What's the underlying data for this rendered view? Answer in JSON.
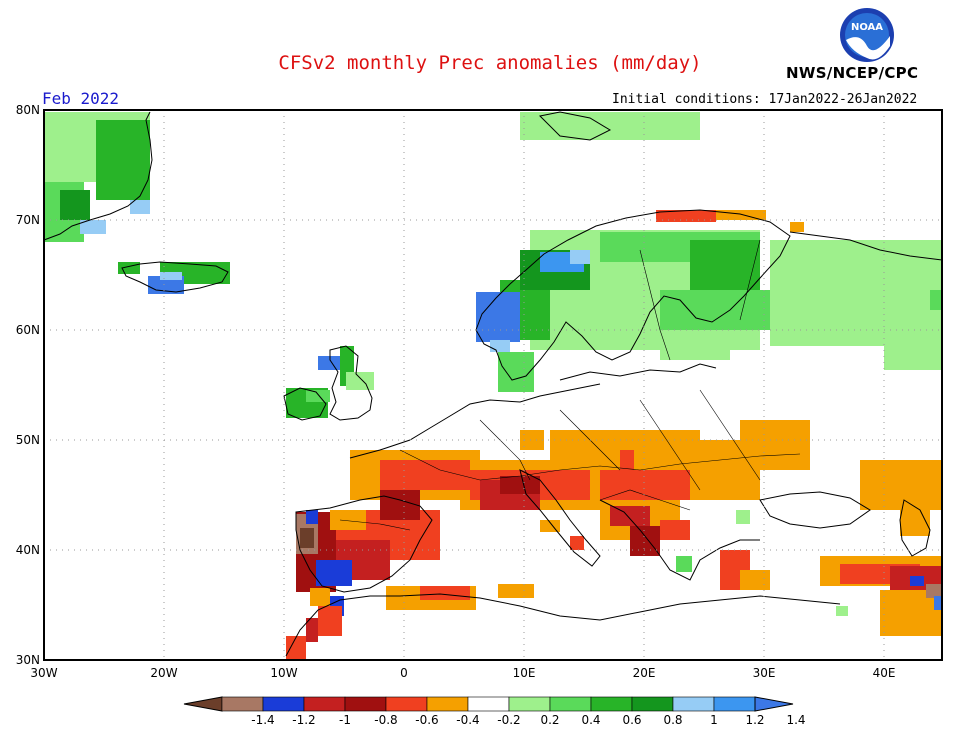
{
  "header": {
    "title": "CFSv2 monthly Prec anomalies (mm/day)",
    "org": "NWS/NCEP/CPC",
    "logo_text": "NOAA",
    "month": "Feb 2022",
    "initial_conditions": "Initial conditions: 17Jan2022-26Jan2022"
  },
  "map": {
    "lat_labels": [
      "80N",
      "70N",
      "60N",
      "50N",
      "40N",
      "30N"
    ],
    "lon_labels": [
      "30W",
      "20W",
      "10W",
      "0",
      "10E",
      "20E",
      "30E",
      "40E"
    ]
  },
  "legend": {
    "labels": [
      "-1.4",
      "-1.2",
      "-1",
      "-0.8",
      "-0.6",
      "-0.4",
      "-0.2",
      "0.2",
      "0.4",
      "0.6",
      "0.8",
      "1",
      "1.2",
      "1.4"
    ],
    "colors": [
      "#6b3e2a",
      "#a87864",
      "#1a3cd8",
      "#c42020",
      "#a01010",
      "#f04020",
      "#f5a000",
      "#ffffff",
      "#9ef08c",
      "#5ada5a",
      "#28b428",
      "#14961e",
      "#96ccf5",
      "#3c96f0",
      "#3c78e6"
    ]
  },
  "colors": {
    "ocean": "#ffffff",
    "title": "#dd1111",
    "month": "#1a1acc"
  }
}
